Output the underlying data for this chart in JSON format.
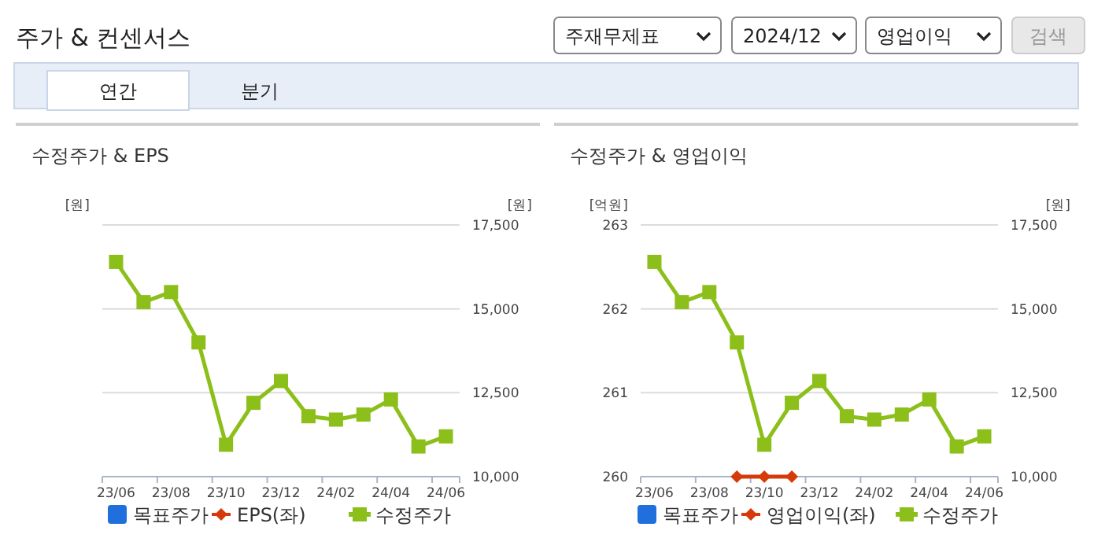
{
  "chart_data": [
    {
      "type": "other",
      "title": "주가 & 컨센서스",
      "annotations": [
        "주재무제표",
        "2024/12",
        "영업이익",
        "검색",
        "연간",
        "분기"
      ]
    },
    {
      "type": "line",
      "title": "수정주가 & EPS",
      "ylabel": "[원]",
      "y2label": "[원]",
      "categories": [
        "23/06",
        null,
        "23/08",
        null,
        "23/10",
        null,
        "23/12",
        null,
        "24/02",
        null,
        "24/04",
        null,
        "24/06"
      ],
      "y2lim": [
        10000,
        17500
      ],
      "y2ticks": [
        {
          "value": 10000,
          "label": "10,000"
        },
        {
          "value": 12500,
          "label": "12,500"
        },
        {
          "value": 15000,
          "label": "15,000"
        },
        {
          "value": 17500,
          "label": "17,500"
        }
      ],
      "grid": "y",
      "legend": "bottom",
      "series": [
        {
          "name": "목표주가",
          "color": "#1f6fdd",
          "marker": "square",
          "axis": "y2",
          "values": [
            null,
            null,
            null,
            null,
            null,
            null,
            null,
            null,
            null,
            null,
            null,
            null,
            null
          ]
        },
        {
          "name": "EPS(좌)",
          "color": "#d63a0a",
          "marker": "diamond",
          "axis": "y",
          "values": [
            null,
            null,
            null,
            null,
            null,
            null,
            null,
            null,
            null,
            null,
            null,
            null,
            null
          ]
        },
        {
          "name": "수정주가",
          "color": "#8cbf1a",
          "marker": "square",
          "axis": "y2",
          "values": [
            16400,
            15200,
            15500,
            14000,
            10950,
            12200,
            12850,
            11800,
            11700,
            11850,
            12300,
            10900,
            11200
          ]
        }
      ]
    },
    {
      "type": "line",
      "title": "수정주가 & 영업이익",
      "ylabel": "[억원]",
      "y2label": "[원]",
      "categories": [
        "23/06",
        null,
        "23/08",
        null,
        "23/10",
        null,
        "23/12",
        null,
        "24/02",
        null,
        "24/04",
        null,
        "24/06"
      ],
      "ylim": [
        260,
        263
      ],
      "yticks": [
        260,
        261,
        262,
        263
      ],
      "y2lim": [
        10000,
        17500
      ],
      "y2ticks": [
        {
          "value": 10000,
          "label": "10,000"
        },
        {
          "value": 12500,
          "label": "12,500"
        },
        {
          "value": 15000,
          "label": "15,000"
        },
        {
          "value": 17500,
          "label": "17,500"
        }
      ],
      "grid": "y",
      "legend": "bottom",
      "series": [
        {
          "name": "목표주가",
          "color": "#1f6fdd",
          "marker": "square",
          "axis": "y2",
          "values": [
            null,
            null,
            null,
            null,
            null,
            null,
            null,
            null,
            null,
            null,
            null,
            null,
            null
          ]
        },
        {
          "name": "영업이익(좌)",
          "color": "#d63a0a",
          "marker": "diamond",
          "axis": "y",
          "values": [
            null,
            null,
            null,
            260,
            260,
            260,
            null,
            null,
            null,
            null,
            null,
            null,
            null
          ]
        },
        {
          "name": "수정주가",
          "color": "#8cbf1a",
          "marker": "square",
          "axis": "y2",
          "values": [
            16400,
            15200,
            15500,
            14000,
            10950,
            12200,
            12850,
            11800,
            11700,
            11850,
            12300,
            10900,
            11200
          ]
        }
      ]
    }
  ]
}
